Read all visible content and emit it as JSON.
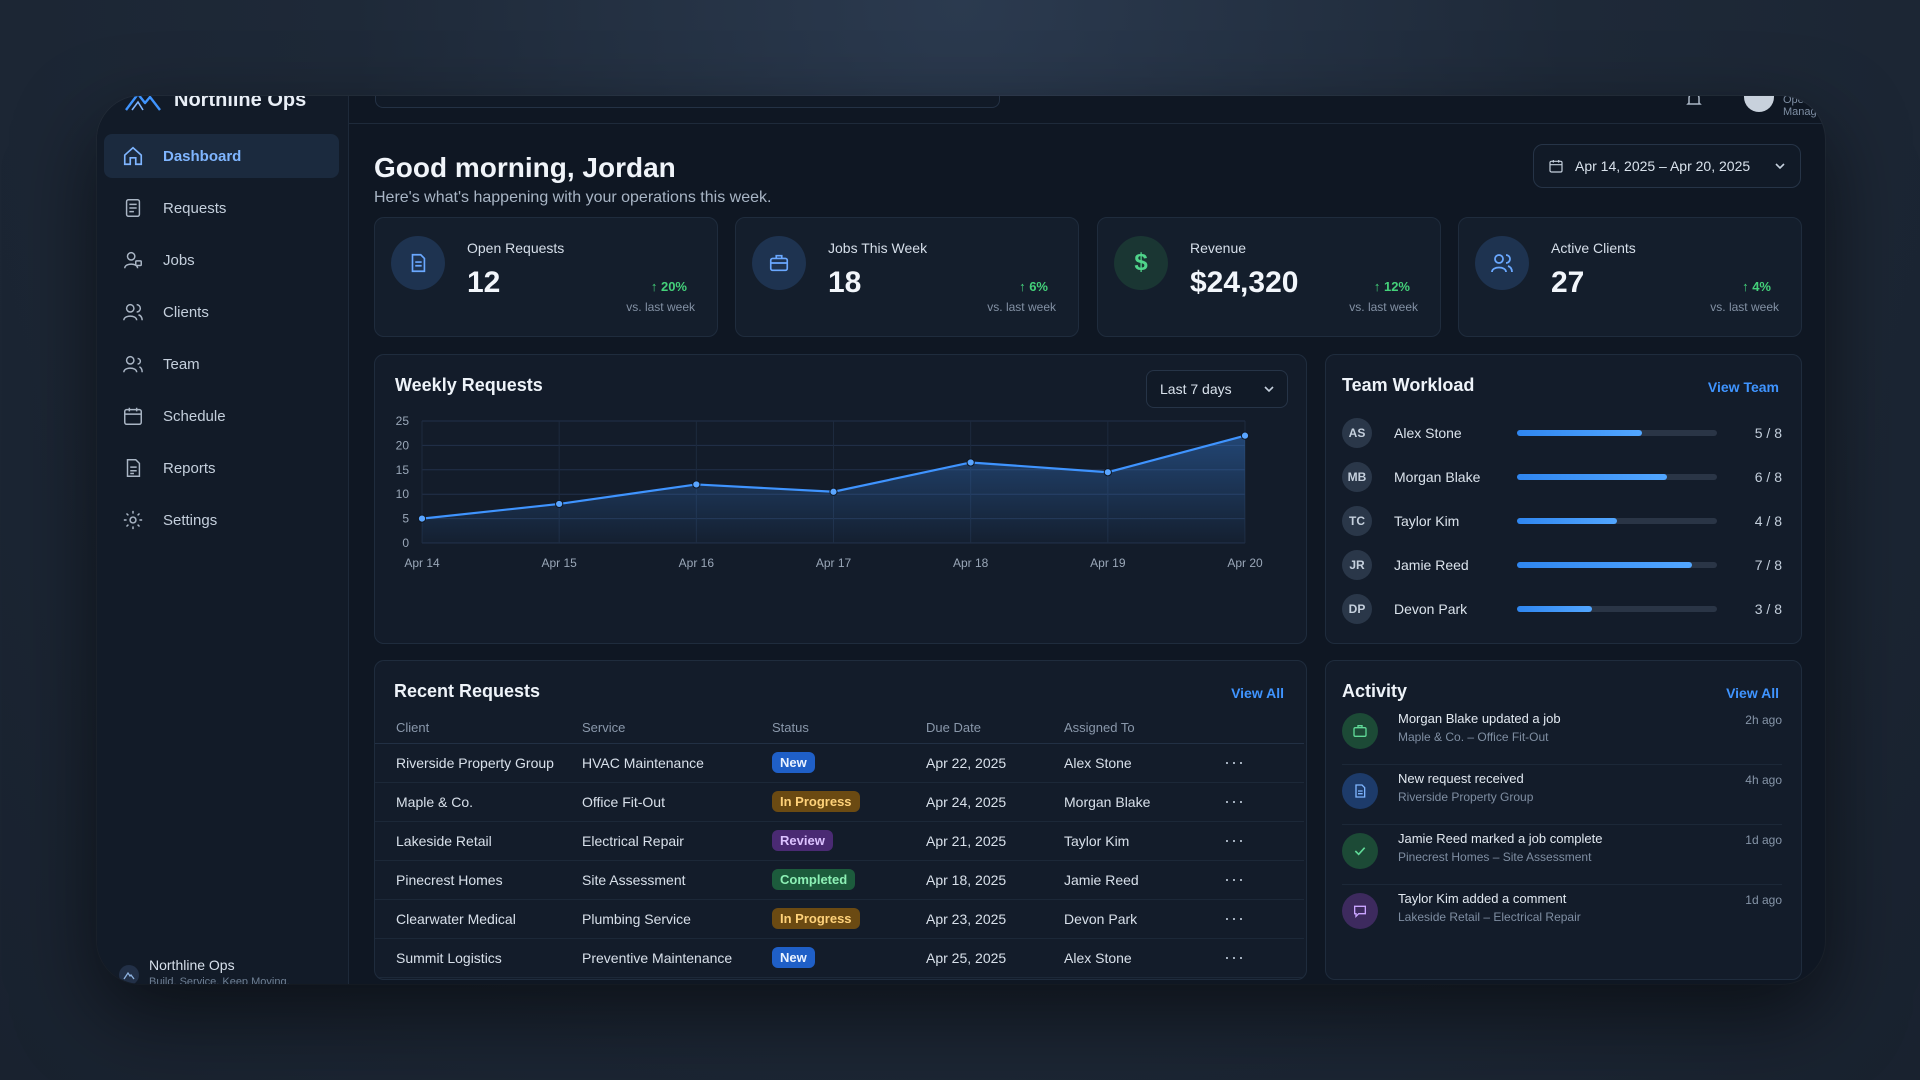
{
  "brand": {
    "name": "Northline Ops",
    "footer_name": "Northline Ops",
    "footer_tagline": "Build. Service. Keep Moving."
  },
  "user": {
    "role": "Operations Manager"
  },
  "nav": [
    {
      "label": "Dashboard",
      "icon": "home-icon",
      "active": true
    },
    {
      "label": "Requests",
      "icon": "clipboard-icon"
    },
    {
      "label": "Jobs",
      "icon": "worker-icon"
    },
    {
      "label": "Clients",
      "icon": "users-icon"
    },
    {
      "label": "Team",
      "icon": "team-icon"
    },
    {
      "label": "Schedule",
      "icon": "calendar-icon"
    },
    {
      "label": "Reports",
      "icon": "report-icon"
    },
    {
      "label": "Settings",
      "icon": "gear-icon"
    }
  ],
  "header": {
    "greeting": "Good morning, Jordan",
    "subtitle": "Here's what's happening with your operations this week.",
    "date_range": "Apr 14, 2025 – Apr 20, 2025"
  },
  "stats": [
    {
      "label": "Open Requests",
      "value": "12",
      "change": "20%",
      "compare": "vs. last week",
      "icon": "document-icon"
    },
    {
      "label": "Jobs This Week",
      "value": "18",
      "change": "6%",
      "compare": "vs. last week",
      "icon": "briefcase-icon"
    },
    {
      "label": "Revenue",
      "value": "$24,320",
      "change": "12%",
      "compare": "vs. last week",
      "icon": "dollar-icon"
    },
    {
      "label": "Active Clients",
      "value": "27",
      "change": "4%",
      "compare": "vs. last week",
      "icon": "users-icon"
    }
  ],
  "weekly": {
    "title": "Weekly Requests",
    "period": "Last 7 days"
  },
  "chart_data": {
    "type": "area",
    "categories": [
      "Apr 14",
      "Apr 15",
      "Apr 16",
      "Apr 17",
      "Apr 18",
      "Apr 19",
      "Apr 20"
    ],
    "values": [
      5,
      8,
      12,
      10.5,
      16.5,
      14.5,
      22
    ],
    "ylim": [
      0,
      25
    ],
    "yticks": [
      "0",
      "5",
      "10",
      "15",
      "20",
      "25"
    ],
    "grid": true,
    "color": "#3f94ff"
  },
  "workload": {
    "title": "Team Workload",
    "link": "View Team",
    "members": [
      {
        "initials": "AS",
        "name": "Alex Stone",
        "count": "5 / 8",
        "fraction": 0.625
      },
      {
        "initials": "MB",
        "name": "Morgan Blake",
        "count": "6 / 8",
        "fraction": 0.75
      },
      {
        "initials": "TC",
        "name": "Taylor Kim",
        "count": "4 / 8",
        "fraction": 0.5
      },
      {
        "initials": "JR",
        "name": "Jamie Reed",
        "count": "7 / 8",
        "fraction": 0.875
      },
      {
        "initials": "DP",
        "name": "Devon Park",
        "count": "3 / 8",
        "fraction": 0.375
      }
    ]
  },
  "recent": {
    "title": "Recent Requests",
    "link": "View All",
    "columns": [
      "Client",
      "Service",
      "Status",
      "Due Date",
      "Assigned To"
    ],
    "rows": [
      {
        "client": "Riverside Property Group",
        "service": "HVAC Maintenance",
        "status": "New",
        "status_type": "new",
        "due": "Apr 22, 2025",
        "assigned": "Alex Stone"
      },
      {
        "client": "Maple & Co.",
        "service": "Office Fit-Out",
        "status": "In Progress",
        "status_type": "progress",
        "due": "Apr 24, 2025",
        "assigned": "Morgan Blake"
      },
      {
        "client": "Lakeside Retail",
        "service": "Electrical Repair",
        "status": "Review",
        "status_type": "review",
        "due": "Apr 21, 2025",
        "assigned": "Taylor Kim"
      },
      {
        "client": "Pinecrest Homes",
        "service": "Site Assessment",
        "status": "Completed",
        "status_type": "completed",
        "due": "Apr 18, 2025",
        "assigned": "Jamie Reed"
      },
      {
        "client": "Clearwater Medical",
        "service": "Plumbing Service",
        "status": "In Progress",
        "status_type": "progress",
        "due": "Apr 23, 2025",
        "assigned": "Devon Park"
      },
      {
        "client": "Summit Logistics",
        "service": "Preventive Maintenance",
        "status": "New",
        "status_type": "new",
        "due": "Apr 25, 2025",
        "assigned": "Alex Stone"
      }
    ],
    "more_label": "···"
  },
  "activity": {
    "title": "Activity",
    "link": "View All",
    "items": [
      {
        "title": "Morgan Blake updated a job",
        "sub": "Maple & Co. – Office Fit-Out",
        "time": "2h ago",
        "icon": "briefcase-icon",
        "color": "#1c4a36"
      },
      {
        "title": "New request received",
        "sub": "Riverside Property Group",
        "time": "4h ago",
        "icon": "document-icon",
        "color": "#1d3b6a"
      },
      {
        "title": "Jamie Reed marked a job complete",
        "sub": "Pinecrest Homes – Site Assessment",
        "time": "1d ago",
        "icon": "check-icon",
        "color": "#1c4a36"
      },
      {
        "title": "Taylor Kim added a comment",
        "sub": "Lakeside Retail – Electrical Repair",
        "time": "1d ago",
        "icon": "comment-icon",
        "color": "#3d2a5e"
      }
    ]
  }
}
